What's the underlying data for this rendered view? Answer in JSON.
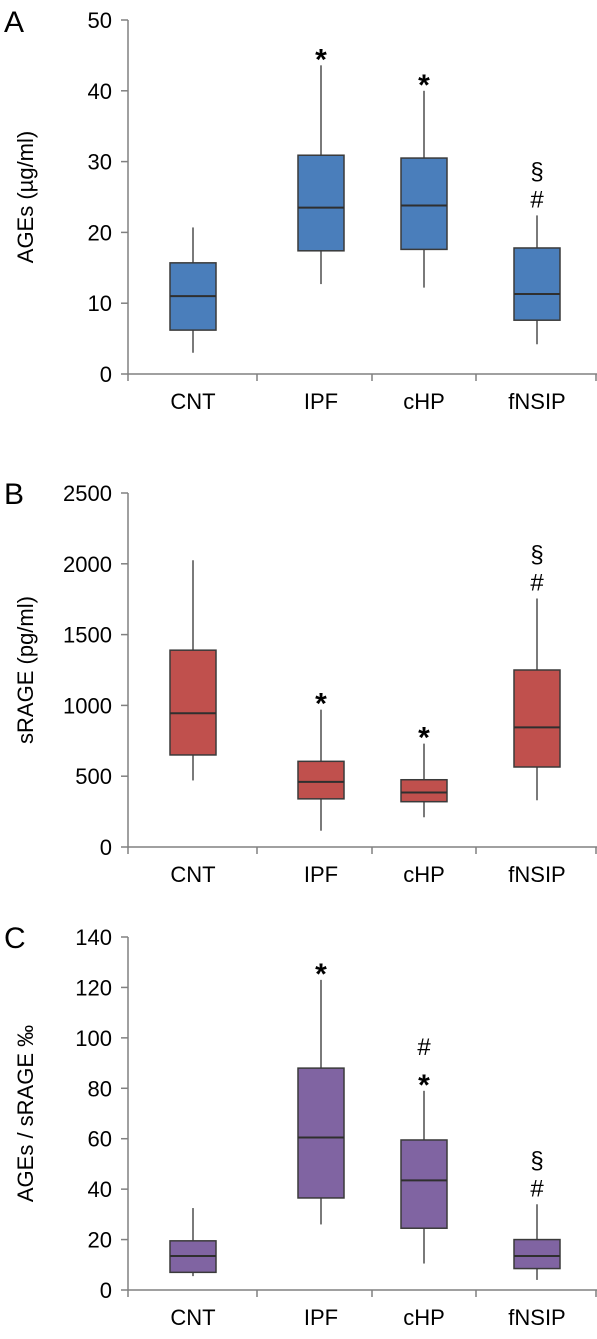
{
  "chart_data": [
    {
      "type": "box",
      "panel_label": "A",
      "ylabel": "AGEs (µg/ml)",
      "xlabel": "",
      "ylim": [
        0,
        50
      ],
      "yticks": [
        0,
        10,
        20,
        30,
        40,
        50
      ],
      "categories": [
        "CNT",
        "IPF",
        "cHP",
        "fNSIP"
      ],
      "color": "#4a7ebb",
      "boxes": [
        {
          "category": "CNT",
          "min": 3,
          "q1": 6.2,
          "median": 11,
          "q3": 15.7,
          "max": 20.7,
          "annotations": []
        },
        {
          "category": "IPF",
          "min": 12.7,
          "q1": 17.4,
          "median": 23.5,
          "q3": 30.9,
          "max": 43.6,
          "annotations": [
            "*"
          ]
        },
        {
          "category": "cHP",
          "min": 12.2,
          "q1": 17.6,
          "median": 23.8,
          "q3": 30.5,
          "max": 40.0,
          "annotations": [
            "*"
          ]
        },
        {
          "category": "fNSIP",
          "min": 4.2,
          "q1": 7.6,
          "median": 11.3,
          "q3": 17.8,
          "max": 22.4,
          "annotations": [
            "#",
            "§"
          ]
        }
      ]
    },
    {
      "type": "box",
      "panel_label": "B",
      "ylabel": "sRAGE (pg/ml)",
      "xlabel": "",
      "ylim": [
        0,
        2500
      ],
      "yticks": [
        0,
        500,
        1000,
        1500,
        2000,
        2500
      ],
      "categories": [
        "CNT",
        "IPF",
        "cHP",
        "fNSIP"
      ],
      "color": "#c0504d",
      "boxes": [
        {
          "category": "CNT",
          "min": 470,
          "q1": 650,
          "median": 945,
          "q3": 1390,
          "max": 2025,
          "annotations": []
        },
        {
          "category": "IPF",
          "min": 115,
          "q1": 340,
          "median": 460,
          "q3": 605,
          "max": 970,
          "annotations": [
            "*"
          ]
        },
        {
          "category": "cHP",
          "min": 210,
          "q1": 320,
          "median": 385,
          "q3": 475,
          "max": 730,
          "annotations": [
            "*"
          ]
        },
        {
          "category": "fNSIP",
          "min": 330,
          "q1": 565,
          "median": 845,
          "q3": 1250,
          "max": 1755,
          "annotations": [
            "#",
            "§"
          ]
        }
      ]
    },
    {
      "type": "box",
      "panel_label": "C",
      "ylabel": "AGEs / sRAGE ‰",
      "xlabel": "",
      "ylim": [
        0,
        140
      ],
      "yticks": [
        0,
        20,
        40,
        60,
        80,
        100,
        120,
        140
      ],
      "categories": [
        "CNT",
        "IPF",
        "cHP",
        "fNSIP"
      ],
      "color": "#8064a2",
      "boxes": [
        {
          "category": "CNT",
          "min": 5.5,
          "q1": 7,
          "median": 13.5,
          "q3": 19.5,
          "max": 32.5,
          "annotations": []
        },
        {
          "category": "IPF",
          "min": 26,
          "q1": 36.5,
          "median": 60.5,
          "q3": 88,
          "max": 123,
          "annotations": [
            "*"
          ]
        },
        {
          "category": "cHP",
          "min": 10.5,
          "q1": 24.5,
          "median": 43.5,
          "q3": 59.5,
          "max": 79,
          "annotations": [
            "*",
            "#"
          ]
        },
        {
          "category": "fNSIP",
          "min": 4,
          "q1": 8.5,
          "median": 13.5,
          "q3": 20,
          "max": 34,
          "annotations": [
            "#",
            "§"
          ]
        }
      ]
    }
  ]
}
